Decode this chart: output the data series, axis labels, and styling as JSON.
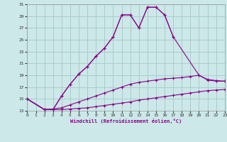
{
  "xlabel": "Windchill (Refroidissement éolien,°C)",
  "bg_color": "#cce8e8",
  "grid_color": "#aacccc",
  "line_color": "#880088",
  "xlim": [
    0,
    23
  ],
  "ylim": [
    13,
    31
  ],
  "xticks": [
    0,
    1,
    2,
    3,
    4,
    5,
    6,
    7,
    8,
    9,
    10,
    11,
    12,
    13,
    14,
    15,
    16,
    17,
    18,
    19,
    20,
    21,
    22,
    23
  ],
  "yticks": [
    13,
    15,
    17,
    19,
    21,
    23,
    25,
    27,
    29,
    31
  ],
  "curves": [
    {
      "x": [
        0,
        2,
        3,
        4,
        5,
        6,
        7,
        8,
        9,
        10,
        11,
        12,
        13,
        14,
        15,
        16,
        17
      ],
      "y": [
        15,
        13.2,
        13.2,
        15.5,
        17.5,
        19.2,
        20.5,
        22.2,
        23.6,
        25.5,
        29.2,
        29.2,
        27.0,
        30.5,
        30.5,
        29.2,
        25.5
      ]
    },
    {
      "x": [
        0,
        2,
        3,
        4,
        5,
        6,
        7,
        8,
        9,
        10,
        11,
        12,
        13,
        14,
        15,
        16,
        17,
        20,
        21,
        22,
        23
      ],
      "y": [
        15,
        13.2,
        13.2,
        15.5,
        17.5,
        19.2,
        20.5,
        22.2,
        23.6,
        25.5,
        29.2,
        29.2,
        27.0,
        30.5,
        30.5,
        29.2,
        25.5,
        19.0,
        18.2,
        18.0,
        18.0
      ]
    },
    {
      "x": [
        0,
        2,
        3,
        4,
        5,
        6,
        7,
        8,
        9,
        10,
        11,
        12,
        13,
        14,
        15,
        16,
        17,
        18,
        19,
        20,
        21,
        22,
        23
      ],
      "y": [
        15.0,
        13.2,
        13.3,
        13.5,
        14.0,
        14.5,
        15.0,
        15.5,
        16.0,
        16.5,
        17.0,
        17.5,
        17.8,
        18.0,
        18.2,
        18.4,
        18.5,
        18.6,
        18.8,
        19.0,
        18.3,
        18.1,
        18.0
      ]
    },
    {
      "x": [
        0,
        2,
        3,
        4,
        5,
        6,
        7,
        8,
        9,
        10,
        11,
        12,
        13,
        14,
        15,
        16,
        17,
        18,
        19,
        20,
        21,
        22,
        23
      ],
      "y": [
        15.0,
        13.2,
        13.2,
        13.2,
        13.3,
        13.4,
        13.5,
        13.7,
        13.9,
        14.1,
        14.3,
        14.5,
        14.8,
        15.0,
        15.2,
        15.4,
        15.6,
        15.8,
        16.0,
        16.2,
        16.4,
        16.5,
        16.6
      ]
    }
  ]
}
